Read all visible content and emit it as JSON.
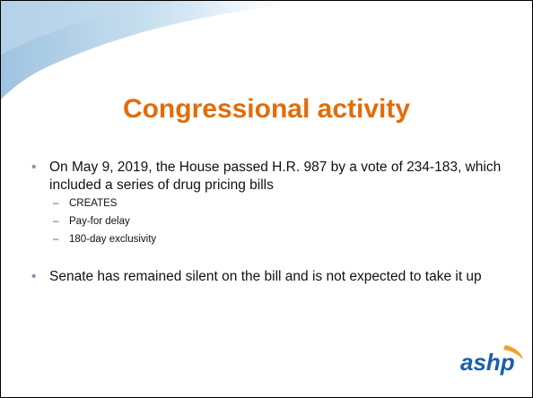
{
  "slide": {
    "title": "Congressional activity",
    "bullets": [
      {
        "text": "On May 9, 2019, the House passed H.R. 987 by a vote of 234-183, which included a series of drug pricing bills",
        "subitems": [
          "CREATES",
          "Pay-for delay",
          "180-day exclusivity"
        ]
      },
      {
        "text": "Senate has remained silent on the bill and is not expected to take it up"
      }
    ],
    "logo": "ashp"
  }
}
